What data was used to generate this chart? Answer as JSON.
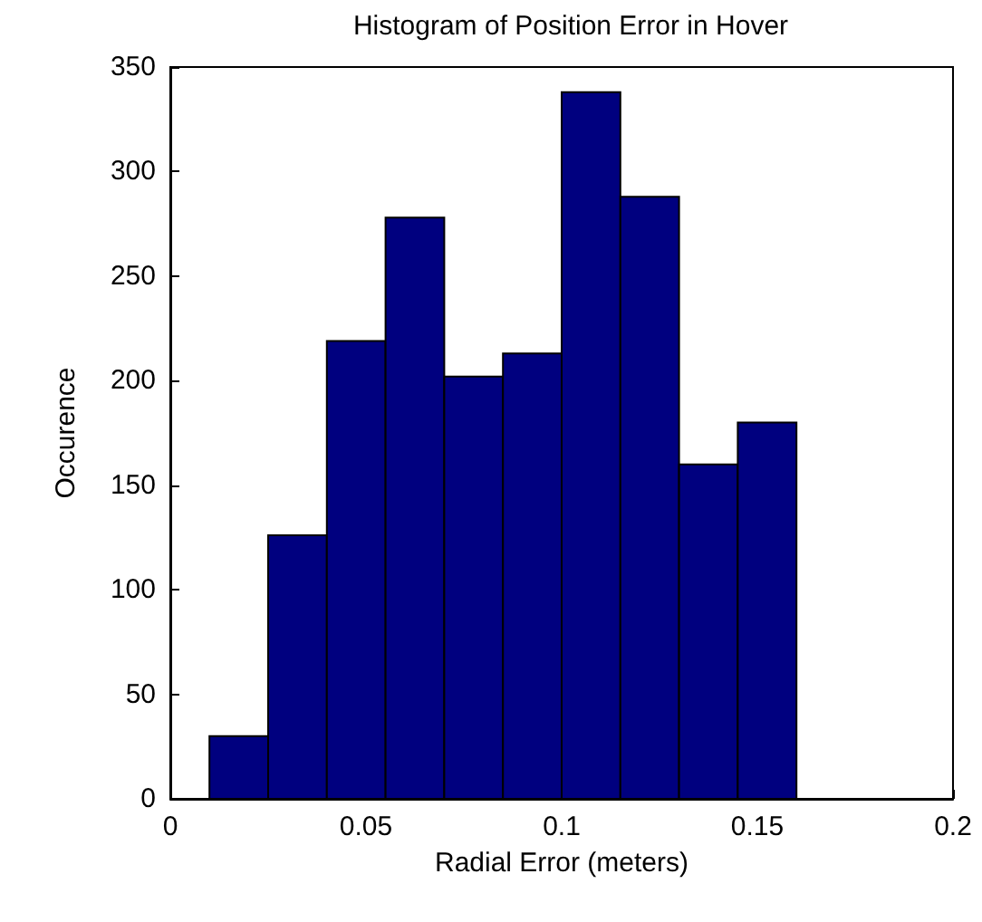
{
  "chart_data": {
    "type": "histogram",
    "title": "Histogram of Position Error in Hover",
    "xlabel": "Radial Error (meters)",
    "ylabel": "Occurence",
    "bins": [
      0.01,
      0.025,
      0.04,
      0.055,
      0.07,
      0.085,
      0.1,
      0.115,
      0.13,
      0.145,
      0.16
    ],
    "values": [
      30,
      126,
      219,
      278,
      202,
      213,
      338,
      288,
      160,
      180
    ],
    "color": "#00007f",
    "xlim": [
      0,
      0.2
    ],
    "xticks": [
      0,
      0.05,
      0.1,
      0.15,
      0.2
    ],
    "ylim": [
      0,
      350
    ],
    "yticks": [
      0,
      50,
      100,
      150,
      200,
      250,
      300,
      350
    ],
    "grid": false
  }
}
